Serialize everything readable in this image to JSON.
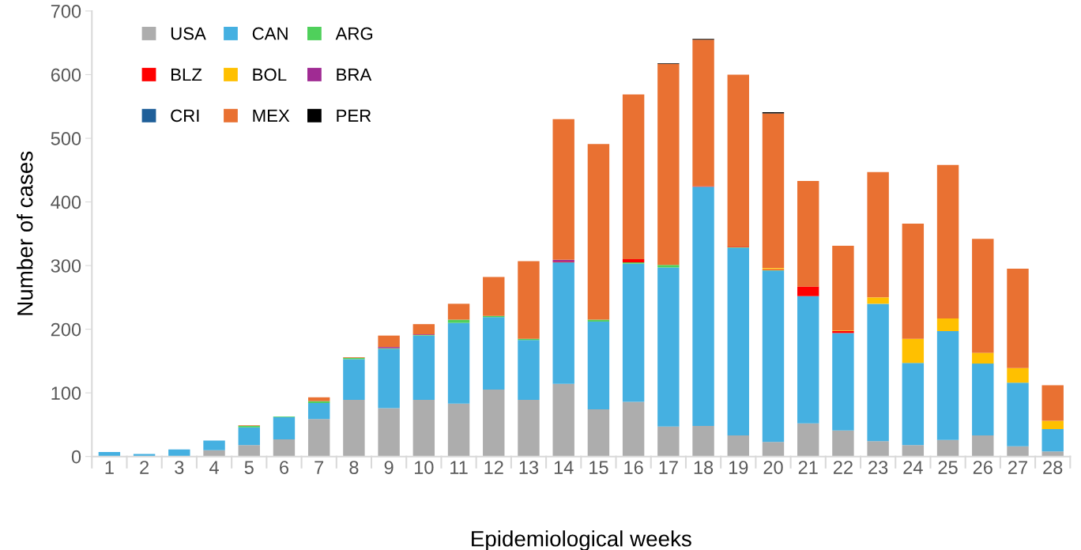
{
  "chart_data": {
    "type": "bar",
    "stacked": true,
    "xlabel": "Epidemiological weeks",
    "ylabel": "Number of cases",
    "categories": [
      "1",
      "2",
      "3",
      "4",
      "5",
      "6",
      "7",
      "8",
      "9",
      "10",
      "11",
      "12",
      "13",
      "14",
      "15",
      "16",
      "17",
      "18",
      "19",
      "20",
      "21",
      "22",
      "23",
      "24",
      "25",
      "26",
      "27",
      "28"
    ],
    "series": [
      {
        "name": "USA",
        "color": "#adadad",
        "values": [
          0,
          0,
          0,
          10,
          18,
          27,
          59,
          89,
          76,
          89,
          83,
          105,
          89,
          114,
          74,
          86,
          47,
          48,
          33,
          23,
          52,
          41,
          24,
          18,
          26,
          33,
          16,
          8
        ]
      },
      {
        "name": "CAN",
        "color": "#45b0e1",
        "values": [
          7,
          4,
          11,
          15,
          28,
          35,
          25,
          64,
          93,
          101,
          127,
          114,
          94,
          191,
          138,
          217,
          250,
          376,
          295,
          269,
          200,
          153,
          216,
          129,
          171,
          113,
          100,
          35
        ]
      },
      {
        "name": "ARG",
        "color": "#4fd05b",
        "values": [
          0,
          0,
          0,
          0,
          2,
          1,
          3,
          2,
          1,
          1,
          5,
          2,
          2,
          0,
          3,
          2,
          4,
          0,
          1,
          1,
          0,
          0,
          0,
          0,
          0,
          0,
          0,
          0
        ]
      },
      {
        "name": "BLZ",
        "color": "#ff0000",
        "values": [
          0,
          0,
          0,
          0,
          0,
          0,
          0,
          0,
          0,
          0,
          0,
          0,
          0,
          1,
          0,
          5,
          0,
          1,
          1,
          1,
          15,
          3,
          0,
          0,
          0,
          0,
          0,
          0
        ]
      },
      {
        "name": "BOL",
        "color": "#ffc000",
        "values": [
          0,
          0,
          0,
          0,
          0,
          0,
          0,
          0,
          0,
          0,
          0,
          0,
          0,
          0,
          0,
          0,
          0,
          0,
          0,
          2,
          0,
          1,
          10,
          38,
          20,
          17,
          23,
          13
        ]
      },
      {
        "name": "BRA",
        "color": "#a02b93",
        "values": [
          0,
          0,
          0,
          0,
          0,
          0,
          0,
          0,
          2,
          1,
          0,
          0,
          0,
          3,
          0,
          0,
          0,
          0,
          0,
          0,
          0,
          0,
          0,
          0,
          0,
          0,
          0,
          0
        ]
      },
      {
        "name": "CRI",
        "color": "#1f5f99",
        "values": [
          0,
          0,
          0,
          0,
          0,
          0,
          0,
          0,
          0,
          0,
          0,
          0,
          0,
          0,
          0,
          0,
          0,
          0,
          0,
          0,
          0,
          0,
          0,
          0,
          0,
          0,
          0,
          0
        ]
      },
      {
        "name": "MEX",
        "color": "#e97132",
        "values": [
          0,
          0,
          0,
          0,
          1,
          0,
          6,
          1,
          18,
          16,
          25,
          61,
          122,
          221,
          276,
          259,
          316,
          230,
          270,
          243,
          166,
          133,
          197,
          181,
          241,
          179,
          156,
          56
        ]
      },
      {
        "name": "PER",
        "color": "#000000",
        "values": [
          0,
          0,
          0,
          0,
          0,
          0,
          0,
          0,
          0,
          0,
          0,
          0,
          0,
          0,
          0,
          0,
          1,
          1,
          0,
          2,
          0,
          0,
          0,
          0,
          0,
          0,
          0,
          0
        ]
      }
    ],
    "ylim": [
      0,
      700
    ],
    "yticks": [
      0,
      100,
      200,
      300,
      400,
      500,
      600,
      700
    ],
    "grid": false,
    "legend": "top left"
  }
}
